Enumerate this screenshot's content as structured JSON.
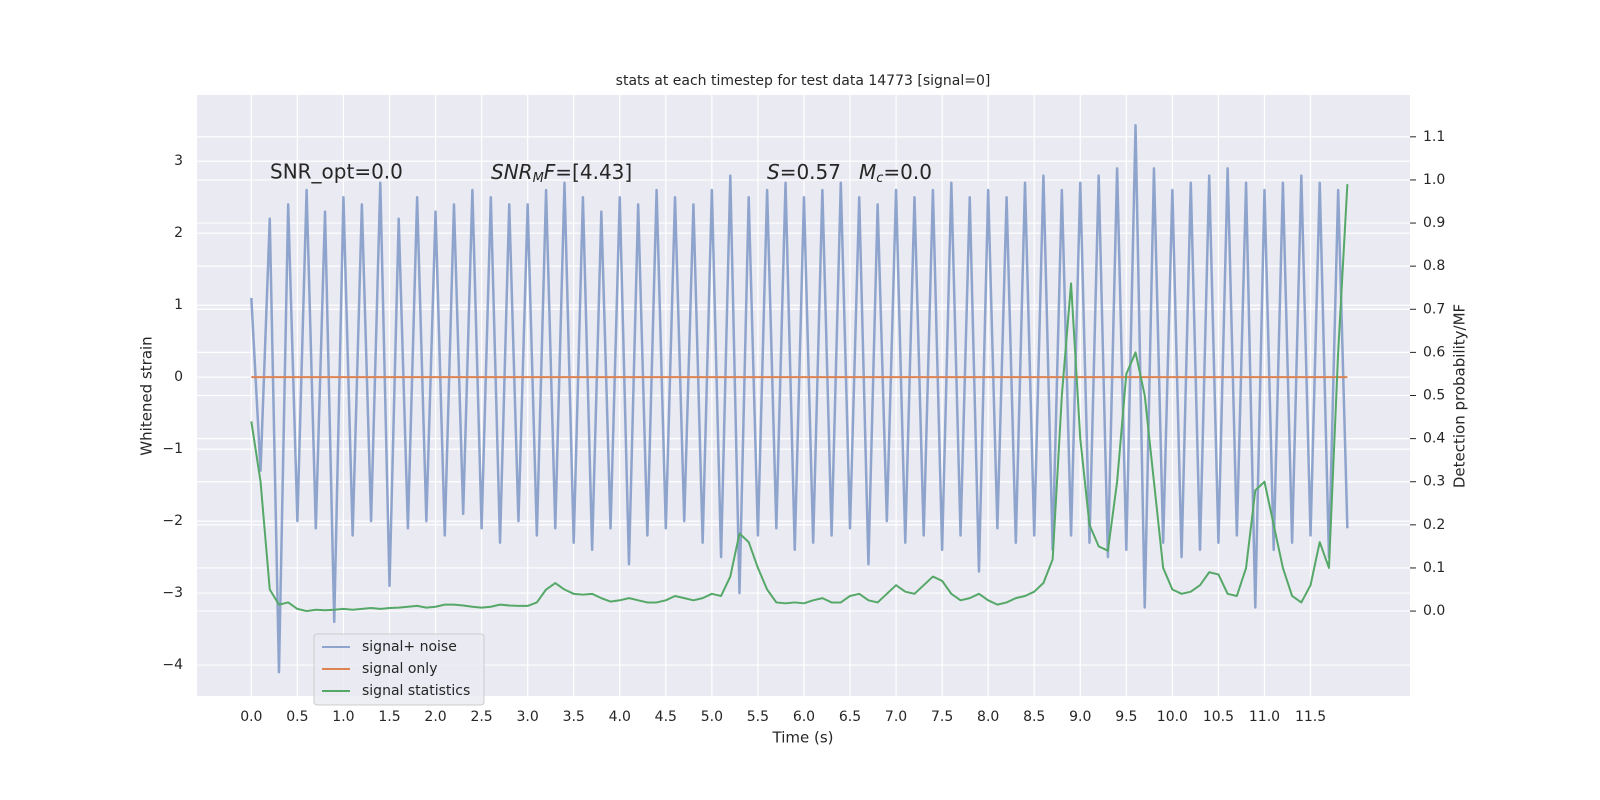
{
  "chart_data": {
    "type": "line",
    "title": "stats at each timestep for test data 14773 [signal=0]",
    "xlabel": "Time (s)",
    "ylabel": "Whitened strain",
    "y2label": "Detection probability/MF",
    "annotations": [
      [
        "SNR_opt=0.0"
      ],
      [
        "SNR",
        "M",
        "F",
        "=[4.43]"
      ],
      [
        "S",
        "=0.57"
      ],
      [
        "M",
        "c",
        "=0.0"
      ]
    ],
    "x": [
      0,
      0.1,
      0.2,
      0.3,
      0.4,
      0.5,
      0.6,
      0.7,
      0.8,
      0.9,
      1,
      1.1,
      1.2,
      1.3,
      1.4,
      1.5,
      1.6,
      1.7,
      1.8,
      1.9,
      2,
      2.1,
      2.2,
      2.3,
      2.4,
      2.5,
      2.6,
      2.7,
      2.8,
      2.9,
      3,
      3.1,
      3.2,
      3.3,
      3.4,
      3.5,
      3.6,
      3.7,
      3.8,
      3.9,
      4,
      4.1,
      4.2,
      4.3,
      4.4,
      4.5,
      4.6,
      4.7,
      4.8,
      4.9,
      5,
      5.1,
      5.2,
      5.3,
      5.4,
      5.5,
      5.6,
      5.7,
      5.8,
      5.9,
      6,
      6.1,
      6.2,
      6.3,
      6.4,
      6.5,
      6.6,
      6.7,
      6.8,
      6.9,
      7,
      7.1,
      7.2,
      7.3,
      7.4,
      7.5,
      7.6,
      7.7,
      7.8,
      7.9,
      8,
      8.1,
      8.2,
      8.3,
      8.4,
      8.5,
      8.6,
      8.7,
      8.8,
      8.9,
      9,
      9.1,
      9.2,
      9.3,
      9.4,
      9.5,
      9.6,
      9.7,
      9.8,
      9.9,
      10,
      10.1,
      10.2,
      10.3,
      10.4,
      10.5,
      10.6,
      10.7,
      10.8,
      10.9,
      11,
      11.1,
      11.2,
      11.3,
      11.4,
      11.5,
      11.6,
      11.7,
      11.8,
      11.9
    ],
    "series": [
      {
        "name": "signal+ noise",
        "color": "#8fa4cc",
        "values": [
          1.1,
          -1.3,
          2.2,
          -4.1,
          2.4,
          -2.0,
          2.6,
          -2.1,
          2.3,
          -3.4,
          2.5,
          -2.2,
          2.4,
          -2.0,
          2.7,
          -2.9,
          2.2,
          -2.1,
          2.5,
          -2.0,
          2.3,
          -2.2,
          2.4,
          -1.9,
          2.6,
          -2.1,
          2.5,
          -2.3,
          2.4,
          -2.0,
          2.4,
          -2.2,
          2.6,
          -2.1,
          2.7,
          -2.3,
          2.5,
          -2.4,
          2.3,
          -2.1,
          2.5,
          -2.6,
          2.4,
          -2.2,
          2.6,
          -2.1,
          2.5,
          -2.0,
          2.4,
          -2.3,
          2.6,
          -2.5,
          2.8,
          -3.0,
          2.5,
          -2.2,
          2.6,
          -2.1,
          2.7,
          -2.4,
          2.5,
          -2.3,
          2.6,
          -2.2,
          2.7,
          -2.1,
          2.5,
          -2.6,
          2.4,
          -2.0,
          2.6,
          -2.3,
          2.5,
          -2.2,
          2.6,
          -2.4,
          2.7,
          -2.2,
          2.5,
          -2.7,
          2.6,
          -2.1,
          2.5,
          -2.3,
          2.7,
          -2.2,
          2.8,
          -2.4,
          2.6,
          -2.2,
          2.7,
          -2.3,
          2.8,
          -2.5,
          2.9,
          -2.4,
          3.5,
          -3.2,
          2.9,
          -2.3,
          2.6,
          -2.5,
          2.7,
          -2.4,
          2.8,
          -2.3,
          2.9,
          -2.2,
          2.7,
          -3.2,
          2.6,
          -2.4,
          2.7,
          -2.3,
          2.8,
          -2.2,
          2.7,
          -2.5,
          2.6,
          -2.1
        ]
      },
      {
        "name": "signal only",
        "color": "#dd8452",
        "x": [
          0,
          11.9
        ],
        "values": [
          0,
          0
        ]
      },
      {
        "name": "signal statistics",
        "color": "#55a868",
        "axis": "y2",
        "values": [
          0.44,
          0.3,
          0.05,
          0.015,
          0.02,
          0.005,
          0.0,
          0.003,
          0.002,
          0.003,
          0.005,
          0.003,
          0.005,
          0.007,
          0.005,
          0.007,
          0.008,
          0.01,
          0.012,
          0.008,
          0.01,
          0.015,
          0.015,
          0.013,
          0.01,
          0.008,
          0.01,
          0.015,
          0.013,
          0.012,
          0.012,
          0.02,
          0.05,
          0.065,
          0.05,
          0.04,
          0.038,
          0.04,
          0.03,
          0.022,
          0.025,
          0.03,
          0.025,
          0.02,
          0.02,
          0.025,
          0.035,
          0.03,
          0.025,
          0.03,
          0.04,
          0.035,
          0.08,
          0.18,
          0.16,
          0.1,
          0.05,
          0.02,
          0.018,
          0.02,
          0.018,
          0.025,
          0.03,
          0.02,
          0.02,
          0.035,
          0.04,
          0.025,
          0.02,
          0.04,
          0.06,
          0.045,
          0.04,
          0.06,
          0.08,
          0.07,
          0.04,
          0.025,
          0.03,
          0.04,
          0.025,
          0.015,
          0.02,
          0.03,
          0.035,
          0.045,
          0.065,
          0.12,
          0.5,
          0.76,
          0.4,
          0.2,
          0.15,
          0.14,
          0.3,
          0.55,
          0.6,
          0.5,
          0.3,
          0.1,
          0.05,
          0.04,
          0.045,
          0.06,
          0.09,
          0.085,
          0.04,
          0.035,
          0.1,
          0.28,
          0.3,
          0.2,
          0.1,
          0.035,
          0.02,
          0.06,
          0.16,
          0.1,
          0.6,
          0.99
        ]
      }
    ],
    "xlim": [
      -0.59,
      12.58
    ],
    "ylim": [
      -4.43,
      3.92
    ],
    "y2lim": [
      -0.197,
      1.197
    ],
    "xticks": [
      {
        "value": 0,
        "label": "0.0"
      },
      {
        "value": 0.5,
        "label": "0.5"
      },
      {
        "value": 1,
        "label": "1.0"
      },
      {
        "value": 1.5,
        "label": "1.5"
      },
      {
        "value": 2,
        "label": "2.0"
      },
      {
        "value": 2.5,
        "label": "2.5"
      },
      {
        "value": 3,
        "label": "3.0"
      },
      {
        "value": 3.5,
        "label": "3.5"
      },
      {
        "value": 4,
        "label": "4.0"
      },
      {
        "value": 4.5,
        "label": "4.5"
      },
      {
        "value": 5,
        "label": "5.0"
      },
      {
        "value": 5.5,
        "label": "5.5"
      },
      {
        "value": 6,
        "label": "6.0"
      },
      {
        "value": 6.5,
        "label": "6.5"
      },
      {
        "value": 7,
        "label": "7.0"
      },
      {
        "value": 7.5,
        "label": "7.5"
      },
      {
        "value": 8,
        "label": "8.0"
      },
      {
        "value": 8.5,
        "label": "8.5"
      },
      {
        "value": 9,
        "label": "9.0"
      },
      {
        "value": 9.5,
        "label": "9.5"
      },
      {
        "value": 10,
        "label": "10.0"
      },
      {
        "value": 10.5,
        "label": "10.5"
      },
      {
        "value": 11,
        "label": "11.0"
      },
      {
        "value": 11.5,
        "label": "11.5"
      }
    ],
    "yticks": [
      {
        "value": -4,
        "label": "−4"
      },
      {
        "value": -3,
        "label": "−3"
      },
      {
        "value": -2,
        "label": "−2"
      },
      {
        "value": -1,
        "label": "−1"
      },
      0,
      1,
      2,
      3
    ],
    "y2ticks": [
      {
        "value": 0,
        "label": "0.0"
      },
      {
        "value": 0.1,
        "label": "0.1"
      },
      {
        "value": 0.2,
        "label": "0.2"
      },
      {
        "value": 0.3,
        "label": "0.3"
      },
      {
        "value": 0.4,
        "label": "0.4"
      },
      {
        "value": 0.5,
        "label": "0.5"
      },
      {
        "value": 0.6,
        "label": "0.6"
      },
      {
        "value": 0.7,
        "label": "0.7"
      },
      {
        "value": 0.8,
        "label": "0.8"
      },
      {
        "value": 0.9,
        "label": "0.9"
      },
      {
        "value": 1,
        "label": "1.0"
      },
      {
        "value": 1.1,
        "label": "1.1"
      }
    ],
    "grid": true,
    "legend": "lower left"
  }
}
